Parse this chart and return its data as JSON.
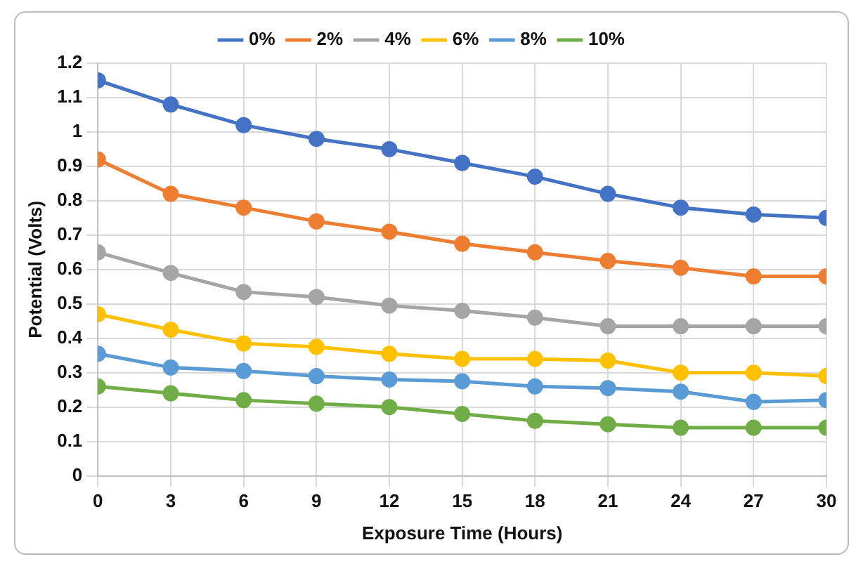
{
  "chart_data": {
    "type": "line",
    "xlabel": "Exposure Time (Hours)",
    "ylabel": "Potential (Volts)",
    "x": [
      0,
      3,
      6,
      9,
      12,
      15,
      18,
      21,
      24,
      27,
      30
    ],
    "series": [
      {
        "name": "0%",
        "color": "#4472c4",
        "values": [
          1.15,
          1.08,
          1.02,
          0.98,
          0.95,
          0.91,
          0.87,
          0.82,
          0.78,
          0.76,
          0.75
        ]
      },
      {
        "name": "2%",
        "color": "#ed7d31",
        "values": [
          0.92,
          0.82,
          0.78,
          0.74,
          0.71,
          0.675,
          0.65,
          0.625,
          0.605,
          0.58,
          0.58
        ]
      },
      {
        "name": "4%",
        "color": "#a5a5a5",
        "values": [
          0.65,
          0.59,
          0.535,
          0.52,
          0.495,
          0.48,
          0.46,
          0.435,
          0.435,
          0.435,
          0.435
        ]
      },
      {
        "name": "6%",
        "color": "#ffc000",
        "values": [
          0.47,
          0.425,
          0.385,
          0.375,
          0.355,
          0.34,
          0.34,
          0.335,
          0.3,
          0.3,
          0.29
        ]
      },
      {
        "name": "8%",
        "color": "#5b9bd5",
        "values": [
          0.355,
          0.315,
          0.305,
          0.29,
          0.28,
          0.275,
          0.26,
          0.255,
          0.245,
          0.215,
          0.22
        ]
      },
      {
        "name": "10%",
        "color": "#70ad47",
        "values": [
          0.26,
          0.24,
          0.22,
          0.21,
          0.2,
          0.18,
          0.16,
          0.15,
          0.14,
          0.14,
          0.14
        ]
      }
    ],
    "xlim": [
      0,
      30
    ],
    "xticks": [
      0,
      3,
      6,
      9,
      12,
      15,
      18,
      21,
      24,
      27,
      30
    ],
    "ylim": [
      0,
      1.2
    ],
    "yticks": [
      0,
      {
        "value": 0.1,
        "label": "0.1"
      },
      {
        "value": 0.2,
        "label": "0.2"
      },
      {
        "value": 0.3,
        "label": "0.3"
      },
      {
        "value": 0.4,
        "label": "0.4"
      },
      {
        "value": 0.5,
        "label": "0.5"
      },
      {
        "value": 0.6,
        "label": "0.6"
      },
      {
        "value": 0.7,
        "label": "0.7"
      },
      {
        "value": 0.8,
        "label": "0.8"
      },
      {
        "value": 0.9,
        "label": "0.9"
      },
      1,
      {
        "value": 1.1,
        "label": "1.1"
      },
      {
        "value": 1.2,
        "label": "1.2"
      }
    ],
    "grid": true,
    "legend": "top",
    "marker": "circle",
    "line_style": "solid"
  }
}
